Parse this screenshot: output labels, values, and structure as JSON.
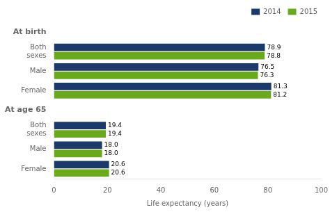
{
  "chart_data": {
    "type": "bar",
    "orientation": "horizontal",
    "xlabel": "Life expectancy (years)",
    "categories": [
      "At birth",
      "Both\nsexes",
      "Male",
      "Female",
      "At age 65",
      "Both\nsexes",
      "Male",
      "Female"
    ],
    "series": [
      {
        "name": "2014",
        "color": "#1b3a6b",
        "values": [
          null,
          78.9,
          76.5,
          81.3,
          null,
          19.4,
          18.0,
          20.6
        ],
        "value_labels": [
          null,
          "78.9",
          "76.5",
          "81.3",
          null,
          "19.4",
          "18.0",
          "20.6"
        ]
      },
      {
        "name": "2015",
        "color": "#6aaa1a",
        "values": [
          null,
          78.8,
          76.3,
          81.2,
          null,
          19.4,
          18.0,
          20.6
        ],
        "value_labels": [
          null,
          "78.8",
          "76.3",
          "81.2",
          null,
          "19.4",
          "18.0",
          "20.6"
        ]
      }
    ],
    "xlim": [
      0,
      100
    ],
    "xticks": [
      0,
      20,
      40,
      60,
      80,
      100
    ],
    "grid": false,
    "legend": "upper right",
    "data_labels": true
  }
}
